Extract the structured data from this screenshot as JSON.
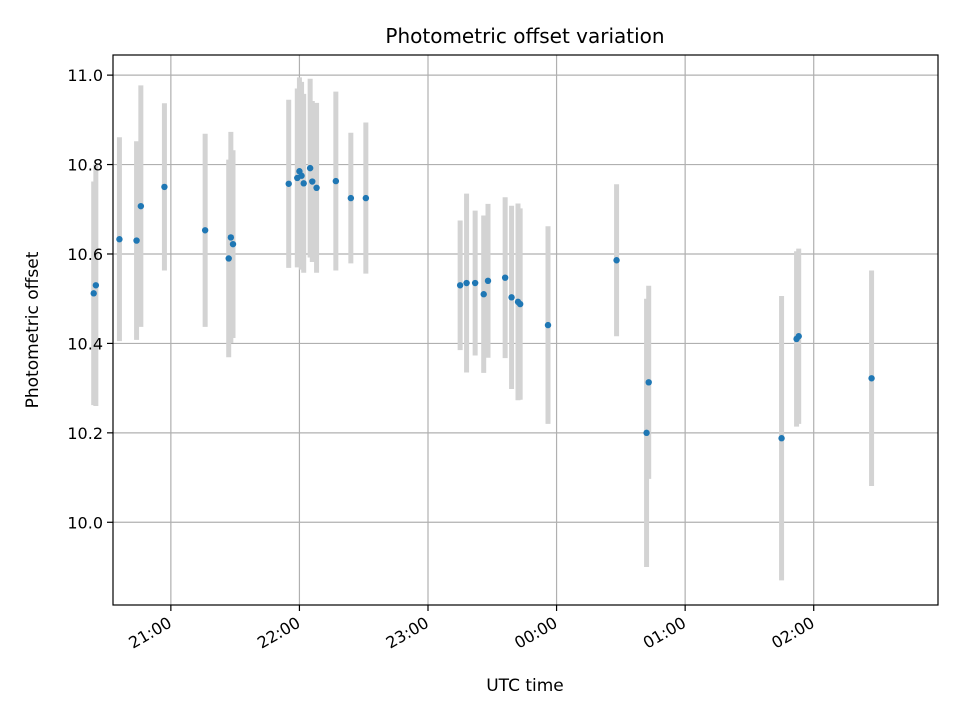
{
  "chart_data": {
    "type": "scatter",
    "title": "Photometric offset variation",
    "xlabel": "UTC time",
    "ylabel": "Photometric offset",
    "x_axis": "time",
    "xlim": [
      "20:33",
      "02:58"
    ],
    "ylim": [
      9.815,
      11.045
    ],
    "x_ticks": [
      "21:00",
      "22:00",
      "23:00",
      "00:00",
      "01:00",
      "02:00"
    ],
    "y_ticks": [
      "10.0",
      "10.2",
      "10.4",
      "10.6",
      "10.8",
      "11.0"
    ],
    "grid": true,
    "colors": {
      "point": "#1f77b4",
      "errorbar": "#d3d3d3",
      "grid": "#b0b0b0"
    },
    "points": [
      {
        "x": "20:24",
        "y": 10.512,
        "yerr": 0.25
      },
      {
        "x": "20:25",
        "y": 10.53,
        "yerr": 0.27
      },
      {
        "x": "20:36",
        "y": 10.633,
        "yerr": 0.228
      },
      {
        "x": "20:44",
        "y": 10.63,
        "yerr": 0.222
      },
      {
        "x": "20:46",
        "y": 10.707,
        "yerr": 0.27
      },
      {
        "x": "20:57",
        "y": 10.75,
        "yerr": 0.187
      },
      {
        "x": "21:16",
        "y": 10.653,
        "yerr": 0.216
      },
      {
        "x": "21:27",
        "y": 10.59,
        "yerr": 0.221
      },
      {
        "x": "21:28",
        "y": 10.637,
        "yerr": 0.236
      },
      {
        "x": "21:29",
        "y": 10.622,
        "yerr": 0.21
      },
      {
        "x": "21:55",
        "y": 10.757,
        "yerr": 0.188
      },
      {
        "x": "21:59",
        "y": 10.77,
        "yerr": 0.2
      },
      {
        "x": "22:00",
        "y": 10.785,
        "yerr": 0.21
      },
      {
        "x": "22:01",
        "y": 10.775,
        "yerr": 0.21
      },
      {
        "x": "22:02",
        "y": 10.758,
        "yerr": 0.2
      },
      {
        "x": "22:05",
        "y": 10.792,
        "yerr": 0.2
      },
      {
        "x": "22:06",
        "y": 10.762,
        "yerr": 0.18
      },
      {
        "x": "22:08",
        "y": 10.748,
        "yerr": 0.19
      },
      {
        "x": "22:17",
        "y": 10.763,
        "yerr": 0.2
      },
      {
        "x": "22:24",
        "y": 10.725,
        "yerr": 0.146
      },
      {
        "x": "22:31",
        "y": 10.725,
        "yerr": 0.169
      },
      {
        "x": "23:15",
        "y": 10.53,
        "yerr": 0.145
      },
      {
        "x": "23:18",
        "y": 10.535,
        "yerr": 0.2
      },
      {
        "x": "23:22",
        "y": 10.535,
        "yerr": 0.162
      },
      {
        "x": "23:26",
        "y": 10.51,
        "yerr": 0.176
      },
      {
        "x": "23:28",
        "y": 10.54,
        "yerr": 0.172
      },
      {
        "x": "23:36",
        "y": 10.547,
        "yerr": 0.18
      },
      {
        "x": "23:39",
        "y": 10.503,
        "yerr": 0.205
      },
      {
        "x": "23:42",
        "y": 10.493,
        "yerr": 0.22
      },
      {
        "x": "23:43",
        "y": 10.488,
        "yerr": 0.214
      },
      {
        "x": "23:56",
        "y": 10.441,
        "yerr": 0.221
      },
      {
        "x": "00:28",
        "y": 10.586,
        "yerr": 0.17
      },
      {
        "x": "00:42",
        "y": 10.2,
        "yerr": 0.3
      },
      {
        "x": "00:43",
        "y": 10.313,
        "yerr": 0.216
      },
      {
        "x": "01:45",
        "y": 10.188,
        "yerr": 0.318
      },
      {
        "x": "01:52",
        "y": 10.41,
        "yerr": 0.196
      },
      {
        "x": "01:53",
        "y": 10.416,
        "yerr": 0.196
      },
      {
        "x": "02:27",
        "y": 10.322,
        "yerr": 0.241
      }
    ]
  }
}
